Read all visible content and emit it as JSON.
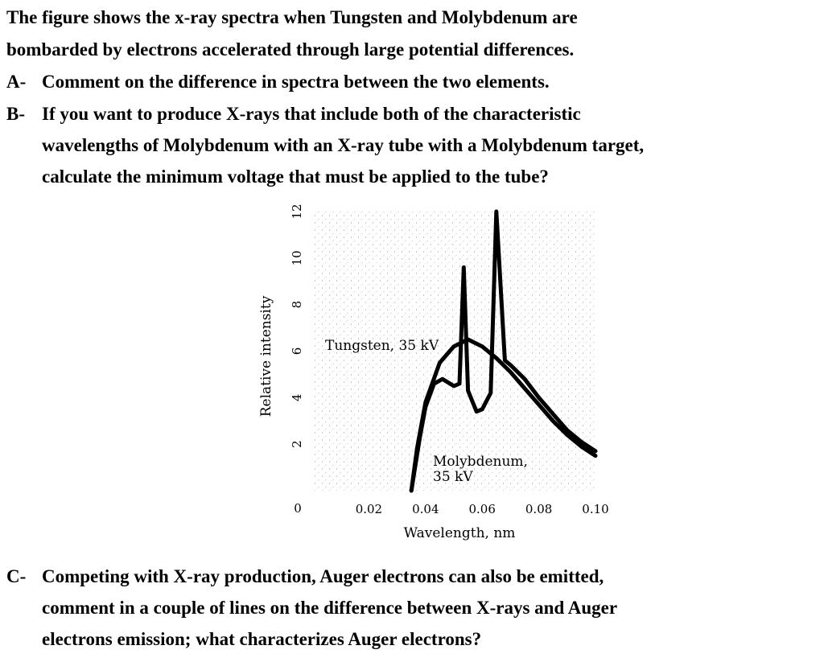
{
  "intro": {
    "lines": [
      "The figure shows the x-ray spectra when Tungsten and Molybdenum are",
      "bombarded by electrons accelerated through large potential differences."
    ]
  },
  "questions": [
    {
      "label": "A-",
      "lines": [
        "Comment on the difference in spectra between the two elements."
      ]
    },
    {
      "label": "B-",
      "lines": [
        "If you want to produce X-rays that include both of the characteristic",
        "wavelengths of Molybdenum with an X-ray tube with a Molybdenum target,",
        "calculate the minimum voltage that must be applied to the tube?"
      ]
    },
    {
      "label": "C-",
      "lines": [
        "Competing with X-ray production, Auger electrons can also be emitted,",
        "comment in a couple of lines on the difference between X-rays and Auger",
        "electrons emission; what characterizes Auger electrons?"
      ]
    }
  ],
  "chart_data": {
    "type": "line",
    "xlabel": "Wavelength, nm",
    "ylabel": "Relative intensity",
    "xlim": [
      0,
      0.1
    ],
    "ylim": [
      0,
      12
    ],
    "x_ticks": [
      "0.02",
      "0.04",
      "0.06",
      "0.08",
      "0.10"
    ],
    "y_ticks": [
      "0",
      "2",
      "4",
      "6",
      "8",
      "10",
      "12"
    ],
    "series": [
      {
        "name": "Tungsten, 35 kV",
        "x": [
          0.035,
          0.037,
          0.04,
          0.045,
          0.05,
          0.055,
          0.06,
          0.065,
          0.07,
          0.075,
          0.08,
          0.085,
          0.09,
          0.095,
          0.1
        ],
        "y": [
          0.0,
          1.8,
          3.8,
          5.5,
          6.2,
          6.5,
          6.2,
          5.7,
          5.1,
          4.4,
          3.7,
          3.0,
          2.4,
          1.9,
          1.5
        ]
      },
      {
        "name": "Molybdenum, 35 kV",
        "x": [
          0.035,
          0.038,
          0.04,
          0.043,
          0.046,
          0.05,
          0.052,
          0.0535,
          0.055,
          0.058,
          0.06,
          0.063,
          0.065,
          0.068,
          0.07,
          0.075,
          0.08,
          0.085,
          0.09,
          0.095,
          0.1
        ],
        "y": [
          0.0,
          2.3,
          3.6,
          4.6,
          4.8,
          4.5,
          4.6,
          9.6,
          4.3,
          3.4,
          3.5,
          4.2,
          12.0,
          5.6,
          5.4,
          4.8,
          4.0,
          3.3,
          2.6,
          2.1,
          1.7
        ]
      }
    ],
    "annotations": [
      "Tungsten, 35 kV",
      "Molybdenum,",
      "35 kV"
    ]
  }
}
